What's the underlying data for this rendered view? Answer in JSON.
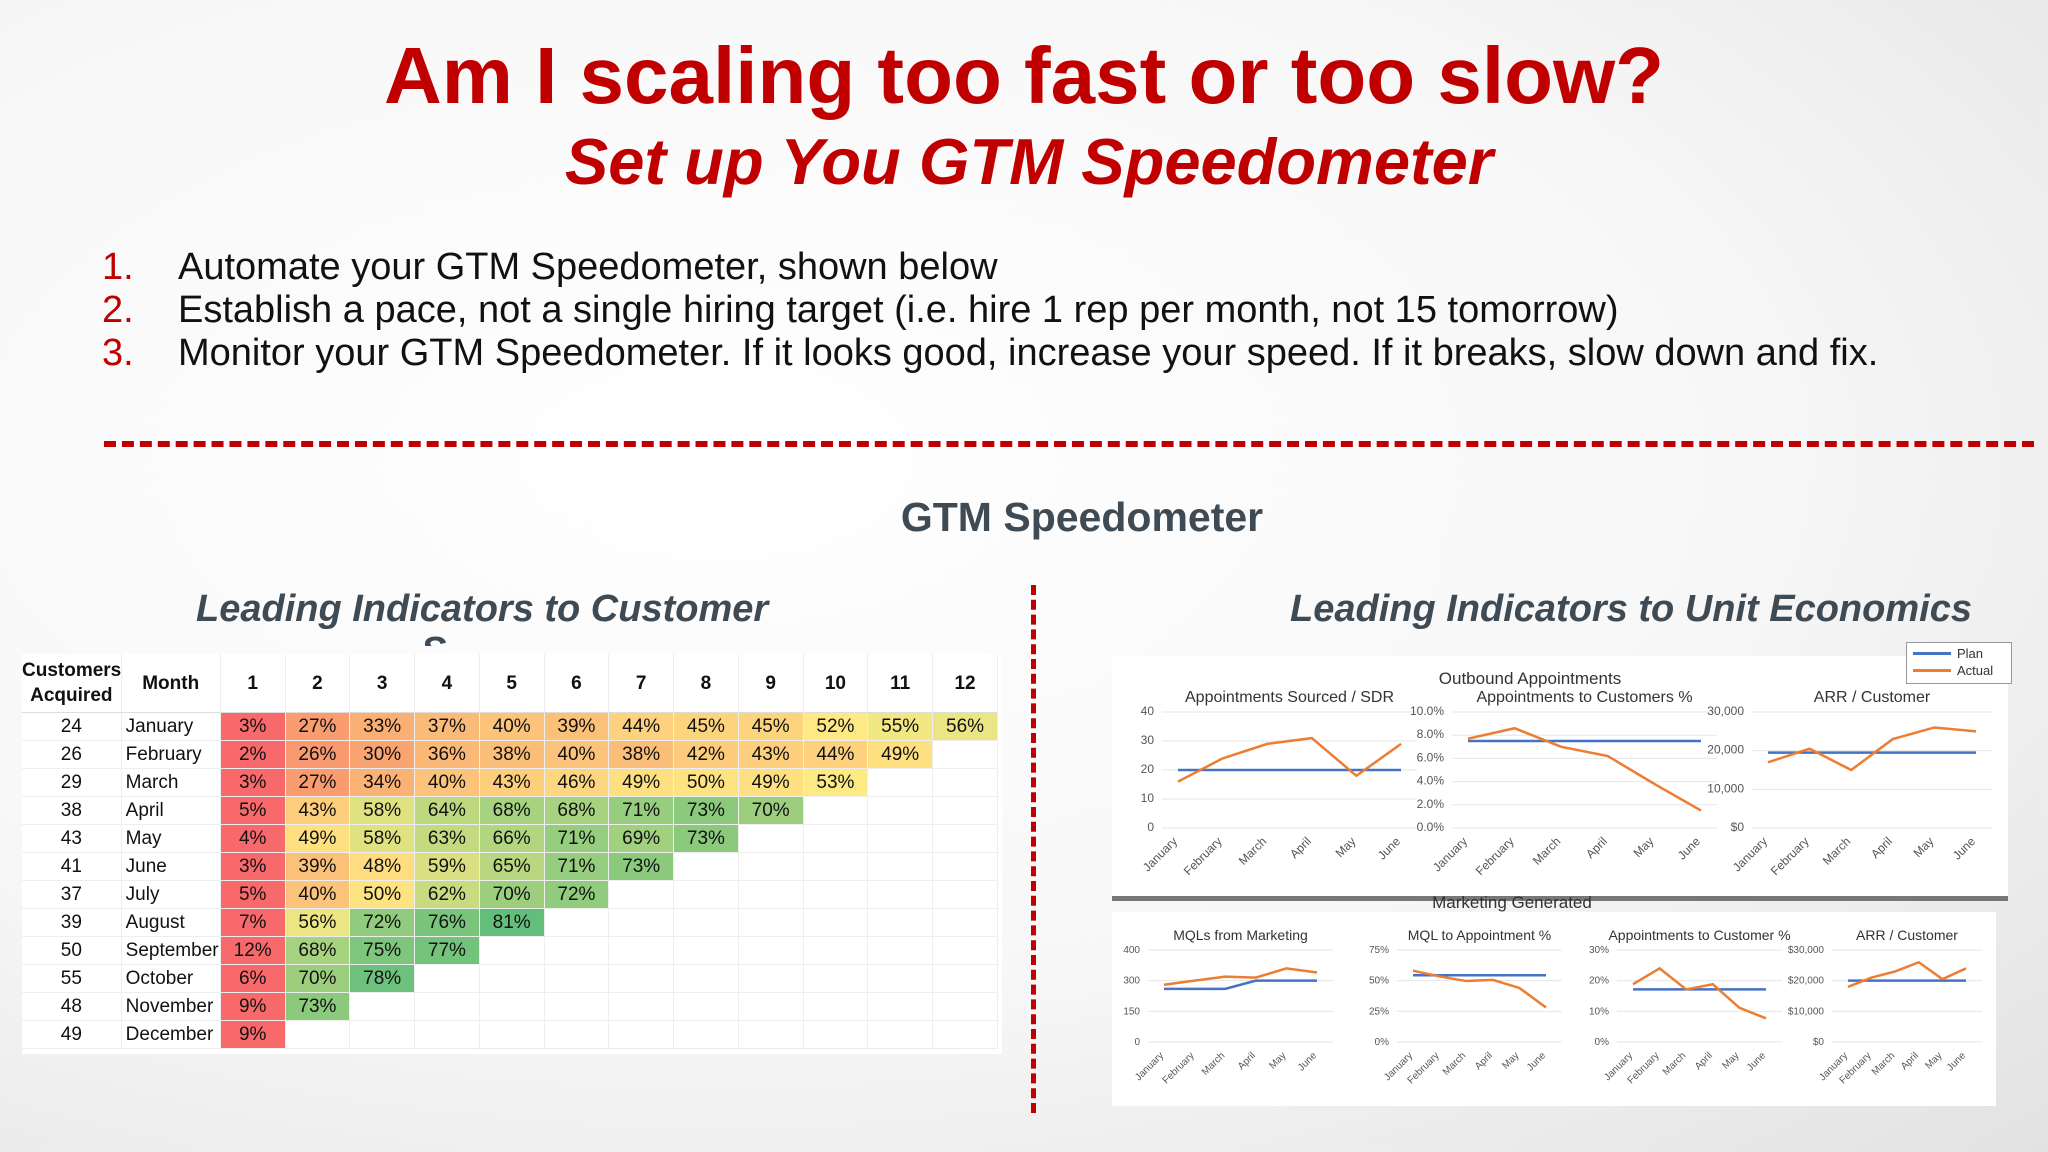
{
  "slide": {
    "title": "Am I scaling too fast or too slow?",
    "subtitle": "Set up You GTM Speedometer",
    "steps": [
      {
        "num": "1.",
        "text": "Automate your GTM Speedometer, shown below"
      },
      {
        "num": "2.",
        "text": "Establish a pace, not a single hiring target (i.e. hire 1 rep per month, not 15 tomorrow)"
      },
      {
        "num": "3.",
        "text": "Monitor your GTM Speedometer.  If it looks good, increase your speed.  If it breaks, slow down and fix."
      }
    ],
    "section_title": "GTM Speedometer",
    "left_heading": "Leading Indicators to Customer",
    "left_heading_tail": "S",
    "right_heading": "Leading Indicators to Unit Economics"
  },
  "cohort": {
    "header_customers": "Customers Acquired",
    "header_month": "Month",
    "periods": [
      "1",
      "2",
      "3",
      "4",
      "5",
      "6",
      "7",
      "8",
      "9",
      "10",
      "11",
      "12"
    ],
    "rows": [
      {
        "customers": "24",
        "month": "January",
        "values": [
          3,
          27,
          33,
          37,
          40,
          39,
          44,
          45,
          45,
          52,
          55,
          56
        ]
      },
      {
        "customers": "26",
        "month": "February",
        "values": [
          2,
          26,
          30,
          36,
          38,
          40,
          38,
          42,
          43,
          44,
          49
        ]
      },
      {
        "customers": "29",
        "month": "March",
        "values": [
          3,
          27,
          34,
          40,
          43,
          46,
          49,
          50,
          49,
          53
        ]
      },
      {
        "customers": "38",
        "month": "April",
        "values": [
          5,
          43,
          58,
          64,
          68,
          68,
          71,
          73,
          70
        ]
      },
      {
        "customers": "43",
        "month": "May",
        "values": [
          4,
          49,
          58,
          63,
          66,
          71,
          69,
          73
        ]
      },
      {
        "customers": "41",
        "month": "June",
        "values": [
          3,
          39,
          48,
          59,
          65,
          71,
          73
        ]
      },
      {
        "customers": "37",
        "month": "July",
        "values": [
          5,
          40,
          50,
          62,
          70,
          72
        ]
      },
      {
        "customers": "39",
        "month": "August",
        "values": [
          7,
          56,
          72,
          76,
          81
        ]
      },
      {
        "customers": "50",
        "month": "September",
        "values": [
          12,
          68,
          75,
          77
        ]
      },
      {
        "customers": "55",
        "month": "October",
        "values": [
          6,
          70,
          78
        ]
      },
      {
        "customers": "48",
        "month": "November",
        "values": [
          9,
          73
        ]
      },
      {
        "customers": "49",
        "month": "December",
        "values": [
          9
        ]
      }
    ]
  },
  "legend": {
    "plan": "Plan",
    "actual": "Actual",
    "plan_color": "#4472c4",
    "actual_color": "#ed7d31"
  },
  "mini_months": [
    "January",
    "February",
    "March",
    "April",
    "May",
    "June"
  ],
  "group_titles": {
    "top_outbound": "Outbound Appointments",
    "bottom_marketing": "Marketing Generated"
  },
  "chart_data": [
    {
      "type": "line",
      "title": "Appointments Sourced / SDR",
      "y_ticks": [
        "40",
        "30",
        "20",
        "10",
        "0"
      ],
      "ylim": [
        0,
        40
      ],
      "x": [
        "January",
        "February",
        "March",
        "April",
        "May",
        "June"
      ],
      "series": [
        {
          "name": "Plan",
          "values": [
            20,
            20,
            20,
            20,
            20,
            20
          ]
        },
        {
          "name": "Actual",
          "values": [
            16,
            24,
            29,
            31,
            18,
            29
          ]
        }
      ]
    },
    {
      "type": "line",
      "title": "Appointments to Customers %",
      "y_ticks": [
        "10.0%",
        "8.0%",
        "6.0%",
        "4.0%",
        "2.0%",
        "0.0%"
      ],
      "ylim": [
        0,
        10
      ],
      "x": [
        "January",
        "February",
        "March",
        "April",
        "May",
        "June"
      ],
      "series": [
        {
          "name": "Plan",
          "values": [
            7.5,
            7.5,
            7.5,
            7.5,
            7.5,
            7.5
          ]
        },
        {
          "name": "Actual",
          "values": [
            7.7,
            8.6,
            7.0,
            6.2,
            3.8,
            1.5
          ]
        }
      ]
    },
    {
      "type": "line",
      "title": "ARR / Customer",
      "y_ticks": [
        "30,000",
        "20,000",
        "10,000",
        "$0"
      ],
      "ylim": [
        0,
        30000
      ],
      "x": [
        "January",
        "February",
        "March",
        "April",
        "May",
        "June"
      ],
      "series": [
        {
          "name": "Plan",
          "values": [
            19500,
            19500,
            19500,
            19500,
            19500,
            19500
          ]
        },
        {
          "name": "Actual",
          "values": [
            17000,
            20500,
            15000,
            23000,
            26000,
            25000
          ]
        }
      ]
    },
    {
      "type": "line",
      "title": "MQLs from Marketing",
      "y_ticks": [
        "400",
        "300",
        "150",
        "0"
      ],
      "ylim": [
        0,
        450
      ],
      "x": [
        "January",
        "February",
        "March",
        "April",
        "May",
        "June"
      ],
      "series": [
        {
          "name": "Plan",
          "values": [
            260,
            260,
            260,
            300,
            300,
            300
          ]
        },
        {
          "name": "Actual",
          "values": [
            280,
            300,
            320,
            315,
            360,
            340
          ]
        }
      ]
    },
    {
      "type": "line",
      "title": "MQL to Appointment %",
      "y_ticks": [
        "75%",
        "50%",
        "25%",
        "0%"
      ],
      "ylim": [
        0,
        80
      ],
      "x": [
        "January",
        "February",
        "March",
        "April",
        "May",
        "June"
      ],
      "series": [
        {
          "name": "Plan",
          "values": [
            58,
            58,
            58,
            58,
            58,
            58
          ]
        },
        {
          "name": "Actual",
          "values": [
            62,
            57,
            53,
            54,
            47,
            30
          ]
        }
      ]
    },
    {
      "type": "line",
      "title": "Appointments to Customer %",
      "y_ticks": [
        "30%",
        "20%",
        "10%",
        "0%"
      ],
      "ylim": [
        0,
        35
      ],
      "x": [
        "January",
        "February",
        "March",
        "April",
        "May",
        "June"
      ],
      "series": [
        {
          "name": "Plan",
          "values": [
            20,
            20,
            20,
            20,
            20,
            20
          ]
        },
        {
          "name": "Actual",
          "values": [
            22,
            28,
            20,
            22,
            13,
            9
          ]
        }
      ]
    },
    {
      "type": "line",
      "title": "ARR / Customer",
      "y_ticks": [
        "$30,000",
        "$20,000",
        "$10,000",
        "$0"
      ],
      "ylim": [
        0,
        30000
      ],
      "x": [
        "January",
        "February",
        "March",
        "April",
        "May",
        "June"
      ],
      "series": [
        {
          "name": "Plan",
          "values": [
            20000,
            20000,
            20000,
            20000,
            20000,
            20000
          ]
        },
        {
          "name": "Actual",
          "values": [
            18000,
            21000,
            23000,
            26000,
            20500,
            24000
          ]
        }
      ]
    }
  ]
}
